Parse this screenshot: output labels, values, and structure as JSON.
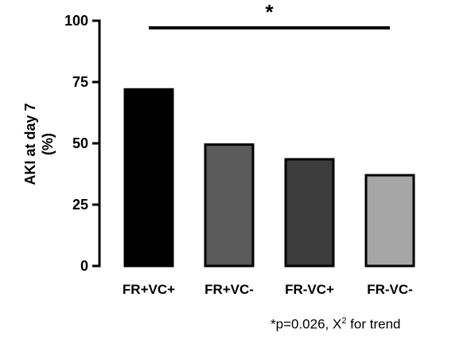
{
  "chart_data": {
    "type": "bar",
    "categories": [
      "FR+VC+",
      "FR+VC-",
      "FR-VC+",
      "FR-VC-"
    ],
    "values": [
      72,
      49.5,
      43.5,
      37
    ],
    "colors": [
      "#000000",
      "#5a5a5a",
      "#3c3c3c",
      "#a6a6a6"
    ],
    "ylabel_line1": "AKI at day 7",
    "ylabel_line2": "(%)",
    "ylim": [
      0,
      100
    ],
    "yticks": [
      "0",
      "25",
      "50",
      "75",
      "100"
    ],
    "significance": {
      "symbol": "*",
      "from": "FR+VC+",
      "to": "FR-VC-"
    },
    "footnote": {
      "pre": "*p=0.026, X",
      "sup": "2",
      "post": " for trend"
    }
  }
}
